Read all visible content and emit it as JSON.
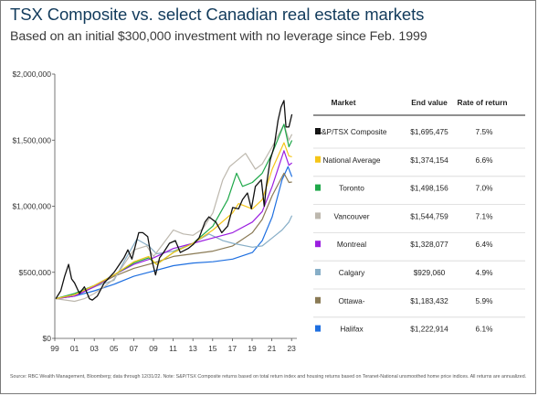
{
  "title": "TSX Composite vs. select Canadian real estate markets",
  "subtitle": "Based on an initial $300,000 investment with no leverage since Feb. 1999",
  "source": "Source: RBC Wealth Management, Bloomberg; data through 12/31/22. Note: S&P/TSX Composite returns based on total return index and housing returns based on Teranet-National unsmoothed home price indices. All returns are annualized.",
  "table": {
    "headers": [
      "Market",
      "End value",
      "Rate of return"
    ],
    "rows": [
      {
        "market": "S&P/TSX Composite",
        "end_value": "$1,695,475",
        "rate": "7.5%",
        "color": "#111111"
      },
      {
        "market": "National Average",
        "end_value": "$1,374,154",
        "rate": "6.6%",
        "color": "#f5c518"
      },
      {
        "market": "Toronto",
        "end_value": "$1,498,156",
        "rate": "7.0%",
        "color": "#1fa84a"
      },
      {
        "market": "Vancouver",
        "end_value": "$1,544,759",
        "rate": "7.1%",
        "color": "#bdb8ae"
      },
      {
        "market": "Montreal",
        "end_value": "$1,328,077",
        "rate": "6.4%",
        "color": "#9b1fe0"
      },
      {
        "market": "Calgary",
        "end_value": "$929,060",
        "rate": "4.9%",
        "color": "#87aec7"
      },
      {
        "market": "Ottawa-",
        "end_value": "$1,183,432",
        "rate": "5.9%",
        "color": "#8a7a55"
      },
      {
        "market": "Halifax",
        "end_value": "$1,222,914",
        "rate": "6.1%",
        "color": "#1e6fe0"
      }
    ]
  },
  "chart_data": {
    "type": "line",
    "x_tick_labels": [
      "99",
      "01",
      "03",
      "05",
      "07",
      "09",
      "11",
      "13",
      "15",
      "17",
      "19",
      "21",
      "23"
    ],
    "y_tick_labels": [
      "$0",
      "$500,000",
      "$1,000,000",
      "$1,500,000",
      "$2,000,000"
    ],
    "ylim": [
      0,
      2000000
    ],
    "xlim": [
      1999.0,
      2023.5
    ],
    "series": [
      {
        "name": "S&P/TSX Composite",
        "color": "#111111",
        "x": [
          1999.1,
          1999.6,
          2000.0,
          2000.4,
          2000.7,
          2001.0,
          2001.5,
          2002.0,
          2002.5,
          2002.8,
          2003.3,
          2004.0,
          2005.0,
          2006.0,
          2006.4,
          2006.8,
          2007.5,
          2007.9,
          2008.4,
          2008.8,
          2009.2,
          2009.6,
          2010.0,
          2010.6,
          2011.2,
          2011.7,
          2012.5,
          2013.0,
          2013.6,
          2014.2,
          2014.6,
          2015.3,
          2015.9,
          2016.5,
          2017.0,
          2017.6,
          2018.0,
          2018.5,
          2018.9,
          2019.3,
          2019.9,
          2020.2,
          2020.4,
          2020.8,
          2021.2,
          2021.6,
          2021.9,
          2022.2,
          2022.4,
          2022.7,
          2023.0
        ],
        "y": [
          300000,
          360000,
          470000,
          560000,
          450000,
          420000,
          340000,
          390000,
          300000,
          290000,
          320000,
          420000,
          500000,
          610000,
          670000,
          600000,
          800000,
          800000,
          770000,
          600000,
          480000,
          610000,
          650000,
          720000,
          740000,
          650000,
          680000,
          710000,
          760000,
          880000,
          920000,
          880000,
          800000,
          850000,
          990000,
          980000,
          1050000,
          1100000,
          980000,
          1150000,
          1200000,
          1000000,
          1150000,
          1350000,
          1450000,
          1650000,
          1750000,
          1800000,
          1600000,
          1600000,
          1695475
        ]
      },
      {
        "name": "National Average",
        "color": "#f5c518",
        "x": [
          1999.1,
          2001.0,
          2003.0,
          2005.0,
          2007.0,
          2008.5,
          2009.3,
          2011.0,
          2013.0,
          2015.0,
          2017.0,
          2017.6,
          2019.0,
          2020.0,
          2021.0,
          2022.2,
          2022.7,
          2023.0
        ],
        "y": [
          300000,
          330000,
          400000,
          480000,
          580000,
          620000,
          560000,
          650000,
          720000,
          820000,
          950000,
          1020000,
          980000,
          1050000,
          1280000,
          1480000,
          1380000,
          1374154
        ]
      },
      {
        "name": "Toronto",
        "color": "#1fa84a",
        "x": [
          1999.1,
          2001.0,
          2003.0,
          2005.0,
          2007.0,
          2008.5,
          2009.3,
          2011.0,
          2013.0,
          2015.0,
          2016.5,
          2017.4,
          2018.0,
          2019.0,
          2020.0,
          2021.0,
          2022.2,
          2022.7,
          2023.0
        ],
        "y": [
          300000,
          340000,
          400000,
          480000,
          570000,
          610000,
          560000,
          650000,
          720000,
          850000,
          1050000,
          1250000,
          1150000,
          1180000,
          1250000,
          1400000,
          1620000,
          1450000,
          1498156
        ]
      },
      {
        "name": "Vancouver",
        "color": "#bdb8ae",
        "x": [
          1999.1,
          2001.0,
          2002.0,
          2003.0,
          2004.0,
          2005.0,
          2006.0,
          2007.0,
          2008.3,
          2009.0,
          2010.0,
          2011.0,
          2012.0,
          2013.0,
          2014.0,
          2015.0,
          2016.0,
          2016.7,
          2017.5,
          2018.3,
          2019.3,
          2020.0,
          2021.0,
          2022.2,
          2022.7,
          2023.0
        ],
        "y": [
          300000,
          280000,
          300000,
          340000,
          390000,
          450000,
          560000,
          670000,
          700000,
          620000,
          720000,
          820000,
          790000,
          780000,
          830000,
          950000,
          1200000,
          1300000,
          1350000,
          1400000,
          1280000,
          1320000,
          1450000,
          1620000,
          1500000,
          1544759
        ]
      },
      {
        "name": "Montreal",
        "color": "#9b1fe0",
        "x": [
          1999.1,
          2001.0,
          2003.0,
          2005.0,
          2007.0,
          2009.0,
          2011.0,
          2013.0,
          2015.0,
          2017.0,
          2019.0,
          2020.0,
          2021.0,
          2022.2,
          2022.7,
          2023.0
        ],
        "y": [
          300000,
          320000,
          390000,
          480000,
          560000,
          610000,
          680000,
          720000,
          760000,
          800000,
          880000,
          960000,
          1150000,
          1420000,
          1310000,
          1328077
        ]
      },
      {
        "name": "Calgary",
        "color": "#87aec7",
        "x": [
          1999.1,
          2001.0,
          2003.0,
          2005.0,
          2006.0,
          2007.3,
          2008.5,
          2009.3,
          2011.0,
          2013.0,
          2014.6,
          2016.0,
          2017.0,
          2019.0,
          2020.0,
          2021.0,
          2022.0,
          2022.7,
          2023.0
        ],
        "y": [
          300000,
          340000,
          390000,
          440000,
          580000,
          750000,
          700000,
          640000,
          660000,
          720000,
          790000,
          740000,
          720000,
          690000,
          700000,
          760000,
          820000,
          880000,
          929060
        ]
      },
      {
        "name": "Ottawa-",
        "color": "#8a7a55",
        "x": [
          1999.1,
          2001.0,
          2003.0,
          2005.0,
          2007.0,
          2009.0,
          2011.0,
          2013.0,
          2015.0,
          2017.0,
          2019.0,
          2020.0,
          2021.0,
          2022.2,
          2022.7,
          2023.0
        ],
        "y": [
          300000,
          320000,
          390000,
          470000,
          530000,
          570000,
          620000,
          640000,
          660000,
          700000,
          800000,
          900000,
          1080000,
          1250000,
          1180000,
          1183432
        ]
      },
      {
        "name": "Halifax",
        "color": "#1e6fe0",
        "x": [
          1999.1,
          2001.0,
          2003.0,
          2005.0,
          2007.0,
          2009.0,
          2011.0,
          2013.0,
          2015.0,
          2017.0,
          2019.0,
          2020.0,
          2021.0,
          2022.0,
          2022.6,
          2023.0
        ],
        "y": [
          300000,
          320000,
          360000,
          410000,
          470000,
          510000,
          550000,
          570000,
          580000,
          600000,
          650000,
          740000,
          920000,
          1200000,
          1300000,
          1222914
        ]
      }
    ]
  }
}
